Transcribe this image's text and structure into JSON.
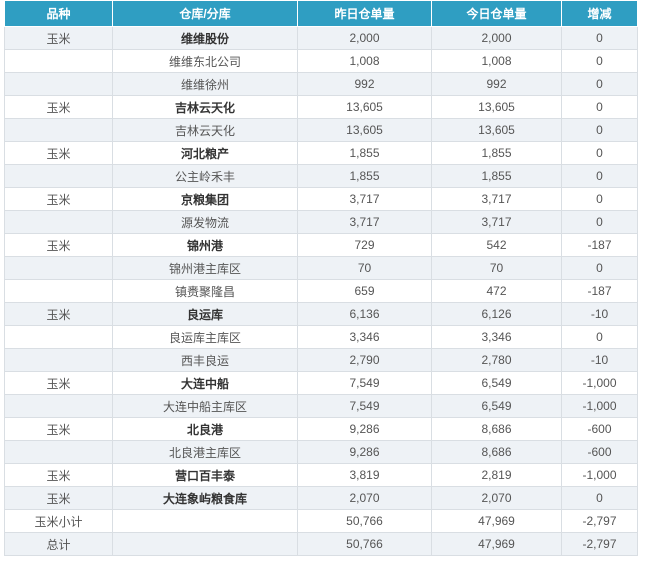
{
  "header": [
    "品种",
    "仓库/分库",
    "昨日仓单量",
    "今日仓单量",
    "增减"
  ],
  "rows": [
    {
      "variety": "玉米",
      "warehouse": "维维股份",
      "yesterday": "2,000",
      "today": "2,000",
      "change": "0",
      "bold": true
    },
    {
      "variety": "",
      "warehouse": "维维东北公司",
      "yesterday": "1,008",
      "today": "1,008",
      "change": "0",
      "bold": false
    },
    {
      "variety": "",
      "warehouse": "维维徐州",
      "yesterday": "992",
      "today": "992",
      "change": "0",
      "bold": false
    },
    {
      "variety": "玉米",
      "warehouse": "吉林云天化",
      "yesterday": "13,605",
      "today": "13,605",
      "change": "0",
      "bold": true
    },
    {
      "variety": "",
      "warehouse": "吉林云天化",
      "yesterday": "13,605",
      "today": "13,605",
      "change": "0",
      "bold": false
    },
    {
      "variety": "玉米",
      "warehouse": "河北粮产",
      "yesterday": "1,855",
      "today": "1,855",
      "change": "0",
      "bold": true
    },
    {
      "variety": "",
      "warehouse": "公主岭禾丰",
      "yesterday": "1,855",
      "today": "1,855",
      "change": "0",
      "bold": false
    },
    {
      "variety": "玉米",
      "warehouse": "京粮集团",
      "yesterday": "3,717",
      "today": "3,717",
      "change": "0",
      "bold": true
    },
    {
      "variety": "",
      "warehouse": "源发物流",
      "yesterday": "3,717",
      "today": "3,717",
      "change": "0",
      "bold": false
    },
    {
      "variety": "玉米",
      "warehouse": "锦州港",
      "yesterday": "729",
      "today": "542",
      "change": "-187",
      "bold": true
    },
    {
      "variety": "",
      "warehouse": "锦州港主库区",
      "yesterday": "70",
      "today": "70",
      "change": "0",
      "bold": false
    },
    {
      "variety": "",
      "warehouse": "镇赉聚隆昌",
      "yesterday": "659",
      "today": "472",
      "change": "-187",
      "bold": false
    },
    {
      "variety": "玉米",
      "warehouse": "良运库",
      "yesterday": "6,136",
      "today": "6,126",
      "change": "-10",
      "bold": true
    },
    {
      "variety": "",
      "warehouse": "良运库主库区",
      "yesterday": "3,346",
      "today": "3,346",
      "change": "0",
      "bold": false
    },
    {
      "variety": "",
      "warehouse": "西丰良运",
      "yesterday": "2,790",
      "today": "2,780",
      "change": "-10",
      "bold": false
    },
    {
      "variety": "玉米",
      "warehouse": "大连中船",
      "yesterday": "7,549",
      "today": "6,549",
      "change": "-1,000",
      "bold": true
    },
    {
      "variety": "",
      "warehouse": "大连中船主库区",
      "yesterday": "7,549",
      "today": "6,549",
      "change": "-1,000",
      "bold": false
    },
    {
      "variety": "玉米",
      "warehouse": "北良港",
      "yesterday": "9,286",
      "today": "8,686",
      "change": "-600",
      "bold": true
    },
    {
      "variety": "",
      "warehouse": "北良港主库区",
      "yesterday": "9,286",
      "today": "8,686",
      "change": "-600",
      "bold": false
    },
    {
      "variety": "玉米",
      "warehouse": "营口百丰泰",
      "yesterday": "3,819",
      "today": "2,819",
      "change": "-1,000",
      "bold": true
    },
    {
      "variety": "玉米",
      "warehouse": "大连象屿粮食库",
      "yesterday": "2,070",
      "today": "2,070",
      "change": "0",
      "bold": true
    },
    {
      "variety": "玉米小计",
      "warehouse": "",
      "yesterday": "50,766",
      "today": "47,969",
      "change": "-2,797",
      "bold": false
    },
    {
      "variety": "总计",
      "warehouse": "",
      "yesterday": "50,766",
      "today": "47,969",
      "change": "-2,797",
      "bold": false
    }
  ]
}
